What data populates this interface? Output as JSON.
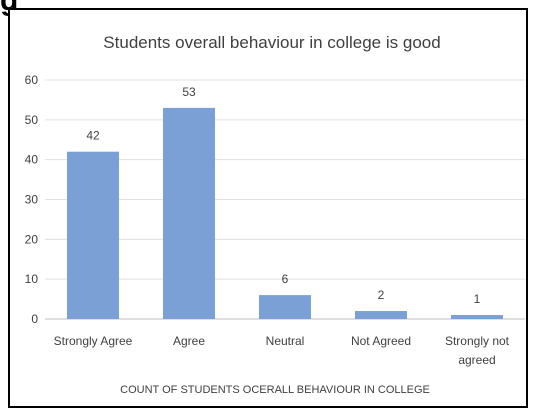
{
  "chart_data": {
    "type": "bar",
    "title": "Students overall behaviour in college is good",
    "xlabel": "COUNT OF STUDENTS OCERALL BEHAVIOUR IN COLLEGE",
    "ylabel": "",
    "categories": [
      "Strongly Agree",
      "Agree",
      "Neutral",
      "Not Agreed",
      "Strongly not agreed"
    ],
    "values": [
      42,
      53,
      6,
      2,
      1
    ],
    "data_labels": [
      "42",
      "53",
      "6",
      "2",
      "1"
    ],
    "ylim": [
      0,
      60
    ],
    "yticks": [
      "0",
      "10",
      "20",
      "30",
      "40",
      "50",
      "60"
    ],
    "grid": true,
    "legend": "none",
    "bar_color": "#7aa0d6"
  },
  "header_fragment": "g"
}
